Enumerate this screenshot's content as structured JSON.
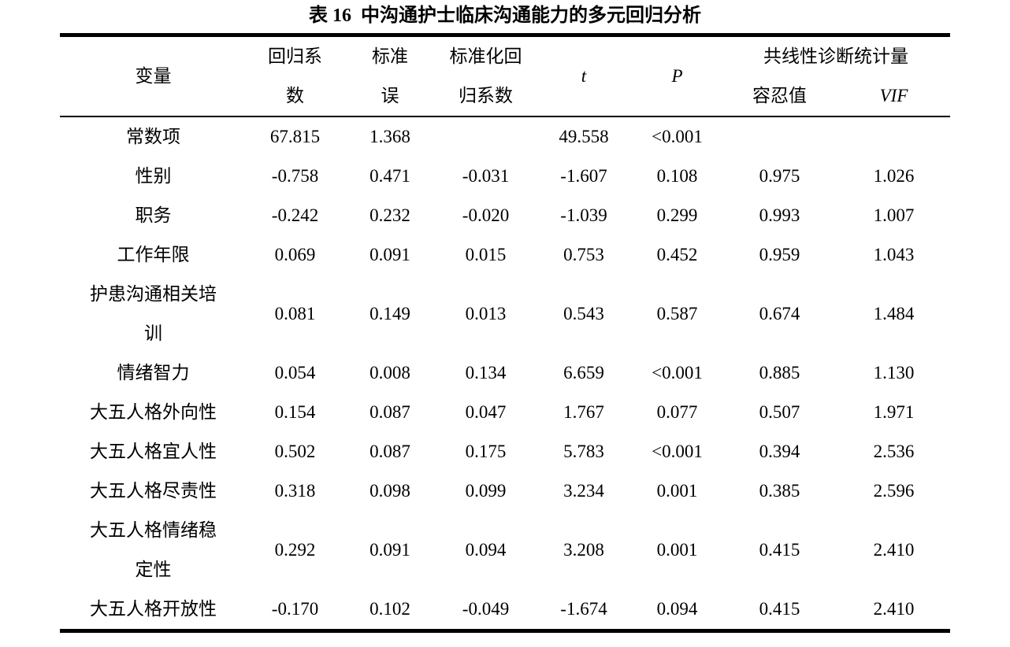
{
  "title": "表 16  中沟通护士临床沟通能力的多元回归分析",
  "table": {
    "columns": {
      "variable": "变量",
      "b": [
        "回归系",
        "数"
      ],
      "se": [
        "标准",
        "误"
      ],
      "beta": [
        "标准化回",
        "归系数"
      ],
      "t": "t",
      "p": "P",
      "collinearity": "共线性诊断统计量",
      "tolerance": "容忍值",
      "vif": "VIF"
    },
    "rows": [
      {
        "label": "常数项",
        "b": "67.815",
        "se": "1.368",
        "beta": "",
        "t": "49.558",
        "p": "<0.001",
        "tol": "",
        "vif": ""
      },
      {
        "label": "性别",
        "b": "-0.758",
        "se": "0.471",
        "beta": "-0.031",
        "t": "-1.607",
        "p": "0.108",
        "tol": "0.975",
        "vif": "1.026"
      },
      {
        "label": "职务",
        "b": "-0.242",
        "se": "0.232",
        "beta": "-0.020",
        "t": "-1.039",
        "p": "0.299",
        "tol": "0.993",
        "vif": "1.007"
      },
      {
        "label": "工作年限",
        "b": "0.069",
        "se": "0.091",
        "beta": "0.015",
        "t": "0.753",
        "p": "0.452",
        "tol": "0.959",
        "vif": "1.043"
      },
      {
        "label": [
          "护患沟通相关培",
          "训"
        ],
        "b": "0.081",
        "se": "0.149",
        "beta": "0.013",
        "t": "0.543",
        "p": "0.587",
        "tol": "0.674",
        "vif": "1.484"
      },
      {
        "label": "情绪智力",
        "b": "0.054",
        "se": "0.008",
        "beta": "0.134",
        "t": "6.659",
        "p": "<0.001",
        "tol": "0.885",
        "vif": "1.130"
      },
      {
        "label": "大五人格外向性",
        "b": "0.154",
        "se": "0.087",
        "beta": "0.047",
        "t": "1.767",
        "p": "0.077",
        "tol": "0.507",
        "vif": "1.971"
      },
      {
        "label": "大五人格宜人性",
        "b": "0.502",
        "se": "0.087",
        "beta": "0.175",
        "t": "5.783",
        "p": "<0.001",
        "tol": "0.394",
        "vif": "2.536"
      },
      {
        "label": "大五人格尽责性",
        "b": "0.318",
        "se": "0.098",
        "beta": "0.099",
        "t": "3.234",
        "p": "0.001",
        "tol": "0.385",
        "vif": "2.596"
      },
      {
        "label": [
          "大五人格情绪稳",
          "定性"
        ],
        "b": "0.292",
        "se": "0.091",
        "beta": "0.094",
        "t": "3.208",
        "p": "0.001",
        "tol": "0.415",
        "vif": "2.410"
      },
      {
        "label": "大五人格开放性",
        "b": "-0.170",
        "se": "0.102",
        "beta": "-0.049",
        "t": "-1.674",
        "p": "0.094",
        "tol": "0.415",
        "vif": "2.410"
      }
    ]
  }
}
